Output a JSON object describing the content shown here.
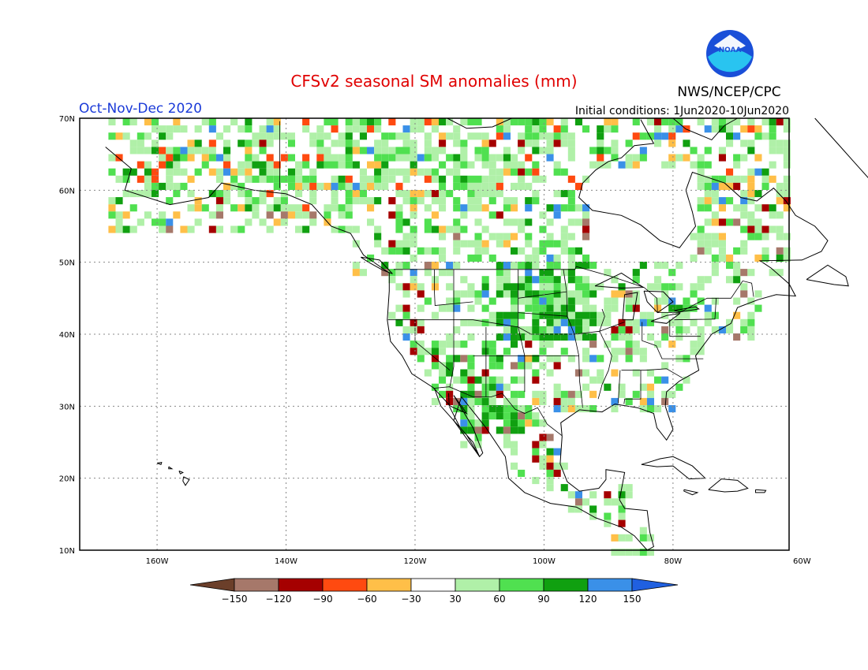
{
  "title": "CFSv2 seasonal SM anomalies (mm)",
  "period": "Oct-Nov-Dec 2020",
  "initial_conditions": "Initial conditions: 1Jun2020-10Jun2020",
  "agency": "NWS/NCEP/CPC",
  "logo_text": "NOAA",
  "colors": {
    "title": "#e00000",
    "period": "#1a3ad8",
    "agency": "#000000"
  },
  "map": {
    "lat_ticks": [
      "70N",
      "60N",
      "50N",
      "40N",
      "30N",
      "20N",
      "10N"
    ],
    "lon_ticks": [
      "160W",
      "140W",
      "120W",
      "100W",
      "80W",
      "60W"
    ],
    "lon_range": [
      -172,
      -62
    ],
    "lat_range": [
      10,
      70
    ],
    "grid": "dotted"
  },
  "legend": {
    "labels": [
      "-150",
      "-120",
      "-90",
      "-60",
      "-30",
      "30",
      "60",
      "90",
      "120",
      "150"
    ],
    "colors": [
      "#6b3f2a",
      "#a6786a",
      "#a50000",
      "#ff4a10",
      "#ffbf48",
      "#ffffff",
      "#b0f0a8",
      "#50e050",
      "#10a010",
      "#3a90e8",
      "#2060e0"
    ]
  }
}
